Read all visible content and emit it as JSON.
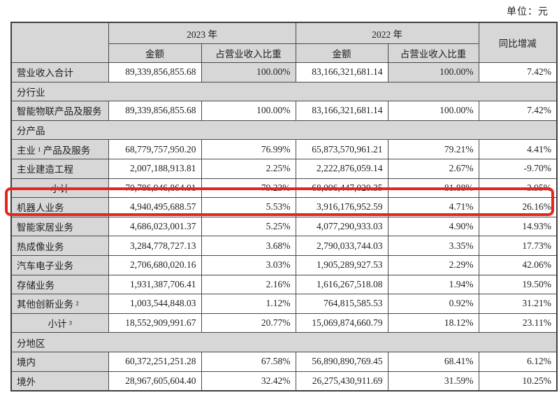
{
  "meta": {
    "unit_label": "单位：元",
    "accent_red": "#e5261f",
    "cell_gray": "#d7d7d7"
  },
  "table": {
    "header": {
      "year_2023": "2023 年",
      "year_2022": "2022 年",
      "amount": "金额",
      "pct": "占营业收入比重",
      "yoy": "同比增减"
    },
    "rows": [
      {
        "type": "data",
        "label": "营业收入合计",
        "a2023": "89,339,856,855.68",
        "p2023": "100.00%",
        "a2022": "83,166,321,681.14",
        "p2022": "100.00%",
        "yoy": "7.42%",
        "pct_shaded": true
      },
      {
        "type": "section",
        "label": "分行业"
      },
      {
        "type": "data",
        "label": "智能物联产品及服务",
        "a2023": "89,339,856,855.68",
        "p2023": "100.00%",
        "a2022": "83,166,321,681.14",
        "p2022": "100.00%",
        "yoy": "7.42%"
      },
      {
        "type": "section",
        "label": "分产品"
      },
      {
        "type": "data",
        "label": "主业 ¹ 产品及服务",
        "a2023": "68,779,757,950.20",
        "p2023": "76.99%",
        "a2022": "65,873,570,961.21",
        "p2022": "79.21%",
        "yoy": "4.41%"
      },
      {
        "type": "data",
        "label": "主业建造工程",
        "a2023": "2,007,188,913.81",
        "p2023": "2.25%",
        "a2022": "2,222,876,059.14",
        "p2022": "2.67%",
        "yoy": "-9.70%"
      },
      {
        "type": "subtotal",
        "label": "小计",
        "a2023": "70,786,946,864.01",
        "p2023": "79.23%",
        "a2022": "68,096,447,020.35",
        "p2022": "81.88%",
        "yoy": "3.95%"
      },
      {
        "type": "data",
        "label": "机器人业务",
        "a2023": "4,940,495,688.57",
        "p2023": "5.53%",
        "a2022": "3,916,176,952.59",
        "p2022": "4.71%",
        "yoy": "26.16%",
        "highlighted": true
      },
      {
        "type": "data",
        "label": "智能家居业务",
        "a2023": "4,686,023,001.37",
        "p2023": "5.25%",
        "a2022": "4,077,290,933.03",
        "p2022": "4.90%",
        "yoy": "14.93%"
      },
      {
        "type": "data",
        "label": "热成像业务",
        "a2023": "3,284,778,727.13",
        "p2023": "3.68%",
        "a2022": "2,790,033,744.03",
        "p2022": "3.35%",
        "yoy": "17.73%"
      },
      {
        "type": "data",
        "label": "汽车电子业务",
        "a2023": "2,706,680,020.16",
        "p2023": "3.03%",
        "a2022": "1,905,289,927.53",
        "p2022": "2.29%",
        "yoy": "42.06%"
      },
      {
        "type": "data",
        "label": "存储业务",
        "a2023": "1,931,387,706.41",
        "p2023": "2.16%",
        "a2022": "1,616,267,518.08",
        "p2022": "1.94%",
        "yoy": "19.50%"
      },
      {
        "type": "data",
        "label": "其他创新业务 ²",
        "a2023": "1,003,544,848.03",
        "p2023": "1.12%",
        "a2022": "764,815,585.53",
        "p2022": "0.92%",
        "yoy": "31.21%"
      },
      {
        "type": "subtotal",
        "label": "小计 ³",
        "a2023": "18,552,909,991.67",
        "p2023": "20.77%",
        "a2022": "15,069,874,660.79",
        "p2022": "18.12%",
        "yoy": "23.11%"
      },
      {
        "type": "section",
        "label": "分地区"
      },
      {
        "type": "data",
        "label": "境内",
        "a2023": "60,372,251,251.28",
        "p2023": "67.58%",
        "a2022": "56,890,890,769.45",
        "p2022": "68.41%",
        "yoy": "6.12%"
      },
      {
        "type": "data",
        "label": "境外",
        "a2023": "28,967,605,604.40",
        "p2023": "32.42%",
        "a2022": "26,275,430,911.69",
        "p2022": "31.59%",
        "yoy": "10.25%"
      }
    ]
  }
}
